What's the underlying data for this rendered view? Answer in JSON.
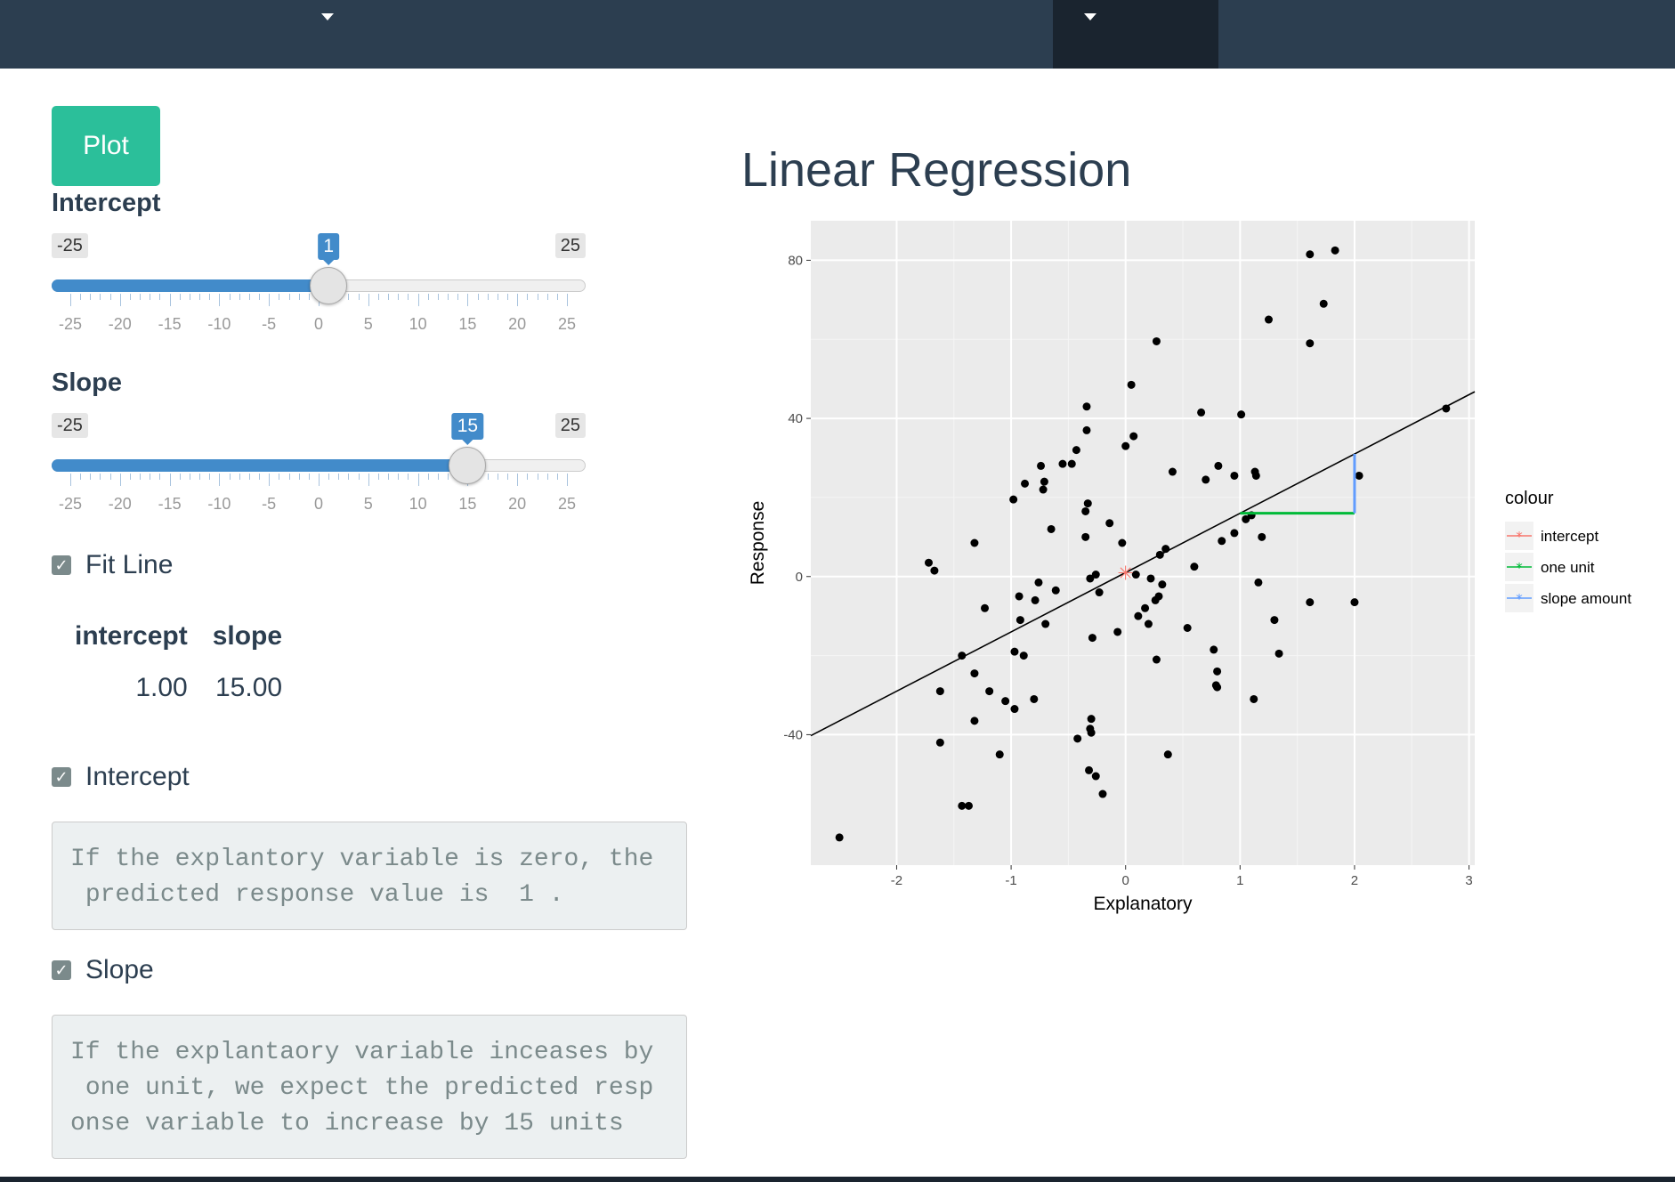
{
  "navbar": {
    "dropdowns": [
      {
        "label": "",
        "active": false
      },
      {
        "label": "",
        "active": true
      }
    ]
  },
  "plot_button": {
    "label": "Plot"
  },
  "intercept_slider": {
    "label": "Intercept",
    "min": -25,
    "max": 25,
    "min_label": "-25",
    "max_label": "25",
    "value": 1,
    "value_label": "1",
    "tick_labels": [
      "-25",
      "-20",
      "-15",
      "-10",
      "-5",
      "0",
      "5",
      "10",
      "15",
      "20",
      "25"
    ]
  },
  "slope_slider": {
    "label": "Slope",
    "min": -25,
    "max": 25,
    "min_label": "-25",
    "max_label": "25",
    "value": 15,
    "value_label": "15",
    "tick_labels": [
      "-25",
      "-20",
      "-15",
      "-10",
      "-5",
      "0",
      "5",
      "10",
      "15",
      "20",
      "25"
    ]
  },
  "fit_line_checkbox": {
    "label": "Fit Line",
    "checked": true
  },
  "coef_table": {
    "headers": [
      "intercept",
      "slope"
    ],
    "row": [
      "1.00",
      "15.00"
    ]
  },
  "intercept_checkbox": {
    "label": "Intercept",
    "checked": true
  },
  "intercept_text": "If the explantory variable is zero, the\n predicted response value is  1 .",
  "slope_checkbox": {
    "label": "Slope",
    "checked": true
  },
  "slope_text": "If the explantaory variable inceases by\n one unit, we expect the predicted resp\nonse variable to increase by 15 units",
  "plot_title": "Linear Regression",
  "chart_data": {
    "type": "scatter",
    "xlabel": "Explanatory",
    "ylabel": "Response",
    "xlim": [
      -2.75,
      3.05
    ],
    "ylim": [
      -73,
      90
    ],
    "x_ticks": [
      -2,
      -1,
      0,
      1,
      2,
      3
    ],
    "y_ticks": [
      -40,
      0,
      40,
      80
    ],
    "x_tick_labels": [
      "-2",
      "-1",
      "0",
      "1",
      "2",
      "3"
    ],
    "y_tick_labels": [
      "-40",
      "0",
      "40",
      "80"
    ],
    "grid": true,
    "legend": {
      "title": "colour",
      "position": "right",
      "entries": [
        {
          "name": "intercept",
          "color": "#f8766d"
        },
        {
          "name": "one unit",
          "color": "#00ba38"
        },
        {
          "name": "slope amount",
          "color": "#619cff"
        }
      ]
    },
    "fit_line": {
      "intercept": 1,
      "slope": 15
    },
    "intercept_point": [
      0,
      1
    ],
    "one_unit_segment": {
      "x": [
        1,
        2
      ],
      "y": 16
    },
    "slope_amount_segment": {
      "x": 2,
      "y": [
        16,
        31
      ]
    },
    "points": [
      [
        -2.5,
        -66
      ],
      [
        -1.72,
        3.5
      ],
      [
        -1.67,
        1.5
      ],
      [
        -1.62,
        -29
      ],
      [
        -1.62,
        -42
      ],
      [
        -1.43,
        -20
      ],
      [
        -1.43,
        -58
      ],
      [
        -1.37,
        -58
      ],
      [
        -1.32,
        -24.5
      ],
      [
        -1.32,
        -36.5
      ],
      [
        -1.32,
        8.5
      ],
      [
        -1.23,
        -8
      ],
      [
        -1.19,
        -29
      ],
      [
        -1.1,
        -45
      ],
      [
        -1.05,
        -31.5
      ],
      [
        -0.97,
        -33.5
      ],
      [
        -0.98,
        19.5
      ],
      [
        -0.97,
        -19
      ],
      [
        -0.93,
        -5
      ],
      [
        -0.92,
        -11
      ],
      [
        -0.89,
        -20
      ],
      [
        -0.88,
        23.5
      ],
      [
        -0.8,
        -31
      ],
      [
        -0.79,
        -6
      ],
      [
        -0.76,
        -1.5
      ],
      [
        -0.74,
        28
      ],
      [
        -0.72,
        22
      ],
      [
        -0.71,
        24
      ],
      [
        -0.7,
        -12
      ],
      [
        -0.65,
        12
      ],
      [
        -0.61,
        -3.5
      ],
      [
        -0.55,
        28.5
      ],
      [
        -0.47,
        28.5
      ],
      [
        -0.43,
        32
      ],
      [
        -0.42,
        -41
      ],
      [
        -0.35,
        10
      ],
      [
        -0.35,
        16.5
      ],
      [
        -0.34,
        37
      ],
      [
        -0.34,
        43
      ],
      [
        -0.33,
        18.5
      ],
      [
        -0.32,
        -49
      ],
      [
        -0.31,
        -38.5
      ],
      [
        -0.31,
        -0.5
      ],
      [
        -0.3,
        -36
      ],
      [
        -0.3,
        -39.5
      ],
      [
        -0.29,
        -15.5
      ],
      [
        -0.26,
        0.5
      ],
      [
        -0.26,
        -50.5
      ],
      [
        -0.23,
        -4
      ],
      [
        -0.2,
        -55
      ],
      [
        -0.14,
        13.5
      ],
      [
        -0.07,
        -14
      ],
      [
        -0.03,
        8.5
      ],
      [
        0,
        33
      ],
      [
        0.05,
        48.5
      ],
      [
        0.07,
        35.5
      ],
      [
        0.09,
        0.5
      ],
      [
        0.11,
        -10
      ],
      [
        0.17,
        -8
      ],
      [
        0.2,
        -12
      ],
      [
        0.22,
        -0.5
      ],
      [
        0.26,
        -6
      ],
      [
        0.27,
        59.5
      ],
      [
        0.27,
        -21
      ],
      [
        0.29,
        -5
      ],
      [
        0.3,
        5.5
      ],
      [
        0.32,
        -2
      ],
      [
        0.35,
        7
      ],
      [
        0.37,
        -45
      ],
      [
        0.41,
        26.5
      ],
      [
        0.54,
        -13
      ],
      [
        0.6,
        2.5
      ],
      [
        0.66,
        41.5
      ],
      [
        0.7,
        24.5
      ],
      [
        0.77,
        -18.5
      ],
      [
        0.79,
        -27.5
      ],
      [
        0.8,
        -24
      ],
      [
        0.8,
        -28
      ],
      [
        0.81,
        28
      ],
      [
        0.84,
        9
      ],
      [
        0.95,
        11
      ],
      [
        0.95,
        25.5
      ],
      [
        1.01,
        41
      ],
      [
        1.05,
        14.5
      ],
      [
        1.1,
        15.5
      ],
      [
        1.12,
        -31
      ],
      [
        1.13,
        26.5
      ],
      [
        1.14,
        25.5
      ],
      [
        1.16,
        -1.5
      ],
      [
        1.19,
        10
      ],
      [
        1.25,
        65
      ],
      [
        1.3,
        -11
      ],
      [
        1.34,
        -19.5
      ],
      [
        1.61,
        81.5
      ],
      [
        1.61,
        59
      ],
      [
        1.61,
        -6.5
      ],
      [
        1.73,
        69
      ],
      [
        2,
        -6.5
      ],
      [
        1.83,
        82.5
      ],
      [
        2.04,
        25.5
      ],
      [
        2.8,
        42.5
      ]
    ]
  }
}
